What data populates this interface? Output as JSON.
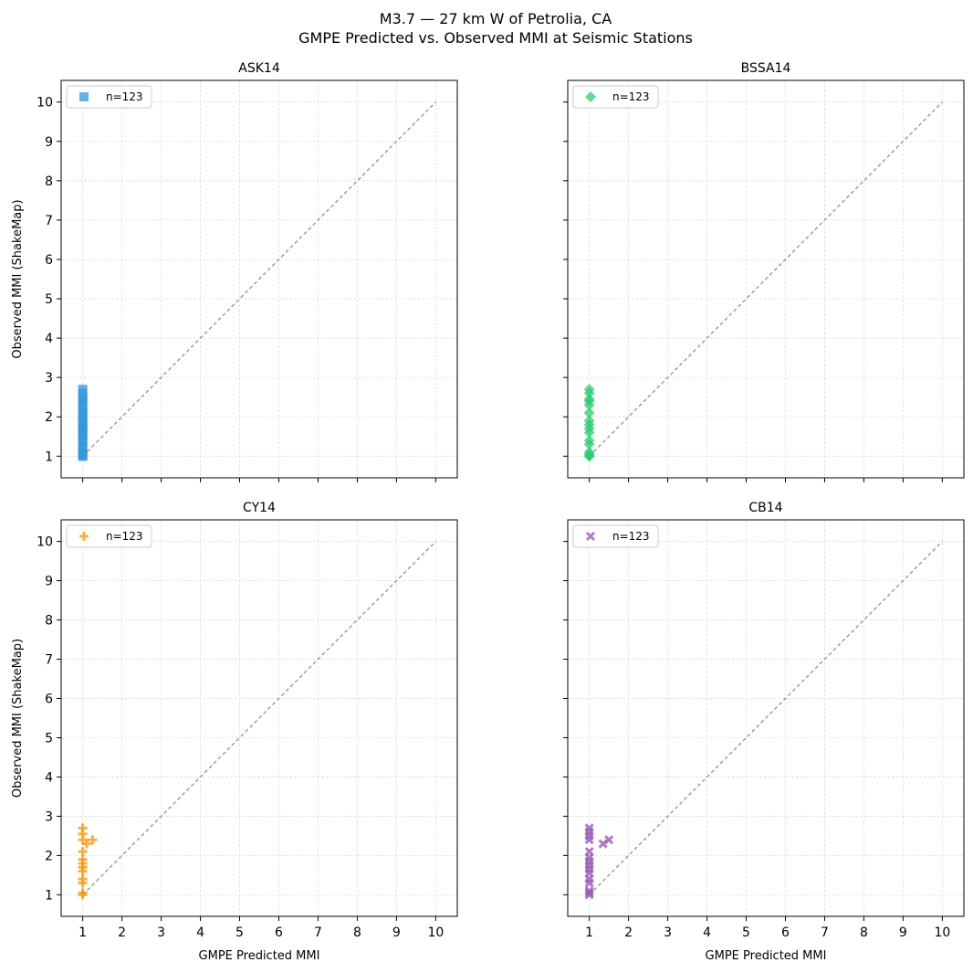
{
  "figure": {
    "title_line1": "M3.7 — 27 km W of Petrolia, CA",
    "title_line2": "GMPE Predicted vs. Observed MMI at Seismic Stations"
  },
  "chart_data": [
    {
      "type": "scatter",
      "title": "ASK14",
      "xlabel": "",
      "ylabel": "Observed MMI (ShakeMap)",
      "xlim": [
        0.45,
        10.55
      ],
      "ylim": [
        0.45,
        10.55
      ],
      "ticks": [
        1,
        2,
        3,
        4,
        5,
        6,
        7,
        8,
        9,
        10
      ],
      "show_x_tick_labels": false,
      "show_y_tick_labels": true,
      "grid": true,
      "legend_position": "top-left",
      "reference_line": {
        "from": [
          1,
          1
        ],
        "to": [
          10,
          10
        ],
        "color": "#888888",
        "style": "dashed"
      },
      "series": [
        {
          "name": "n=123",
          "marker": "square",
          "color": "#3498db",
          "points": [
            [
              1,
              1.0
            ],
            [
              1,
              1.0
            ],
            [
              1,
              1.05
            ],
            [
              1,
              1.1
            ],
            [
              1,
              1.2
            ],
            [
              1,
              1.25
            ],
            [
              1,
              1.35
            ],
            [
              1,
              1.4
            ],
            [
              1,
              1.5
            ],
            [
              1,
              1.55
            ],
            [
              1,
              1.6
            ],
            [
              1,
              1.65
            ],
            [
              1,
              1.7
            ],
            [
              1,
              1.75
            ],
            [
              1,
              1.8
            ],
            [
              1,
              1.85
            ],
            [
              1,
              1.9
            ],
            [
              1,
              2.0
            ],
            [
              1,
              2.05
            ],
            [
              1,
              2.1
            ],
            [
              1,
              2.2
            ],
            [
              1,
              2.3
            ],
            [
              1,
              2.4
            ],
            [
              1,
              2.45
            ],
            [
              1,
              2.5
            ],
            [
              1,
              2.6
            ],
            [
              1,
              2.7
            ]
          ]
        }
      ]
    },
    {
      "type": "scatter",
      "title": "BSSA14",
      "xlabel": "",
      "ylabel": "",
      "xlim": [
        0.45,
        10.55
      ],
      "ylim": [
        0.45,
        10.55
      ],
      "ticks": [
        1,
        2,
        3,
        4,
        5,
        6,
        7,
        8,
        9,
        10
      ],
      "show_x_tick_labels": false,
      "show_y_tick_labels": false,
      "grid": true,
      "legend_position": "top-left",
      "reference_line": {
        "from": [
          1,
          1
        ],
        "to": [
          10,
          10
        ],
        "color": "#888888",
        "style": "dashed"
      },
      "series": [
        {
          "name": "n=123",
          "marker": "diamond",
          "color": "#2ecc71",
          "points": [
            [
              1,
              1.0
            ],
            [
              1,
              1.0
            ],
            [
              1,
              1.05
            ],
            [
              1,
              1.1
            ],
            [
              1,
              1.3
            ],
            [
              1,
              1.4
            ],
            [
              1,
              1.6
            ],
            [
              1,
              1.7
            ],
            [
              1,
              1.8
            ],
            [
              1,
              1.9
            ],
            [
              1,
              2.1
            ],
            [
              1,
              2.3
            ],
            [
              1,
              2.4
            ],
            [
              1,
              2.45
            ],
            [
              1,
              2.6
            ],
            [
              1,
              2.7
            ]
          ]
        }
      ]
    },
    {
      "type": "scatter",
      "title": "CY14",
      "xlabel": "GMPE Predicted MMI",
      "ylabel": "Observed MMI (ShakeMap)",
      "xlim": [
        0.45,
        10.55
      ],
      "ylim": [
        0.45,
        10.55
      ],
      "ticks": [
        1,
        2,
        3,
        4,
        5,
        6,
        7,
        8,
        9,
        10
      ],
      "show_x_tick_labels": true,
      "show_y_tick_labels": true,
      "grid": true,
      "legend_position": "top-left",
      "reference_line": {
        "from": [
          1,
          1
        ],
        "to": [
          10,
          10
        ],
        "color": "#888888",
        "style": "dashed"
      },
      "series": [
        {
          "name": "n=123",
          "marker": "plus",
          "color": "#f39c12",
          "points": [
            [
              1,
              1.0
            ],
            [
              1,
              1.05
            ],
            [
              1,
              1.3
            ],
            [
              1,
              1.4
            ],
            [
              1,
              1.6
            ],
            [
              1,
              1.7
            ],
            [
              1,
              1.8
            ],
            [
              1,
              1.9
            ],
            [
              1,
              2.1
            ],
            [
              1,
              2.4
            ],
            [
              1,
              2.55
            ],
            [
              1,
              2.7
            ],
            [
              1.1,
              2.3
            ],
            [
              1.25,
              2.4
            ]
          ]
        }
      ]
    },
    {
      "type": "scatter",
      "title": "CB14",
      "xlabel": "GMPE Predicted MMI",
      "ylabel": "",
      "xlim": [
        0.45,
        10.55
      ],
      "ylim": [
        0.45,
        10.55
      ],
      "ticks": [
        1,
        2,
        3,
        4,
        5,
        6,
        7,
        8,
        9,
        10
      ],
      "show_x_tick_labels": true,
      "show_y_tick_labels": false,
      "grid": true,
      "legend_position": "top-left",
      "reference_line": {
        "from": [
          1,
          1
        ],
        "to": [
          10,
          10
        ],
        "color": "#888888",
        "style": "dashed"
      },
      "series": [
        {
          "name": "n=123",
          "marker": "x",
          "color": "#9b59b6",
          "points": [
            [
              1,
              1.0
            ],
            [
              1,
              1.05
            ],
            [
              1,
              1.1
            ],
            [
              1,
              1.3
            ],
            [
              1,
              1.4
            ],
            [
              1,
              1.55
            ],
            [
              1,
              1.65
            ],
            [
              1,
              1.75
            ],
            [
              1,
              1.85
            ],
            [
              1,
              1.95
            ],
            [
              1,
              2.1
            ],
            [
              1,
              2.4
            ],
            [
              1,
              2.5
            ],
            [
              1,
              2.6
            ],
            [
              1,
              2.7
            ],
            [
              1.35,
              2.3
            ],
            [
              1.5,
              2.4
            ]
          ]
        }
      ]
    }
  ]
}
